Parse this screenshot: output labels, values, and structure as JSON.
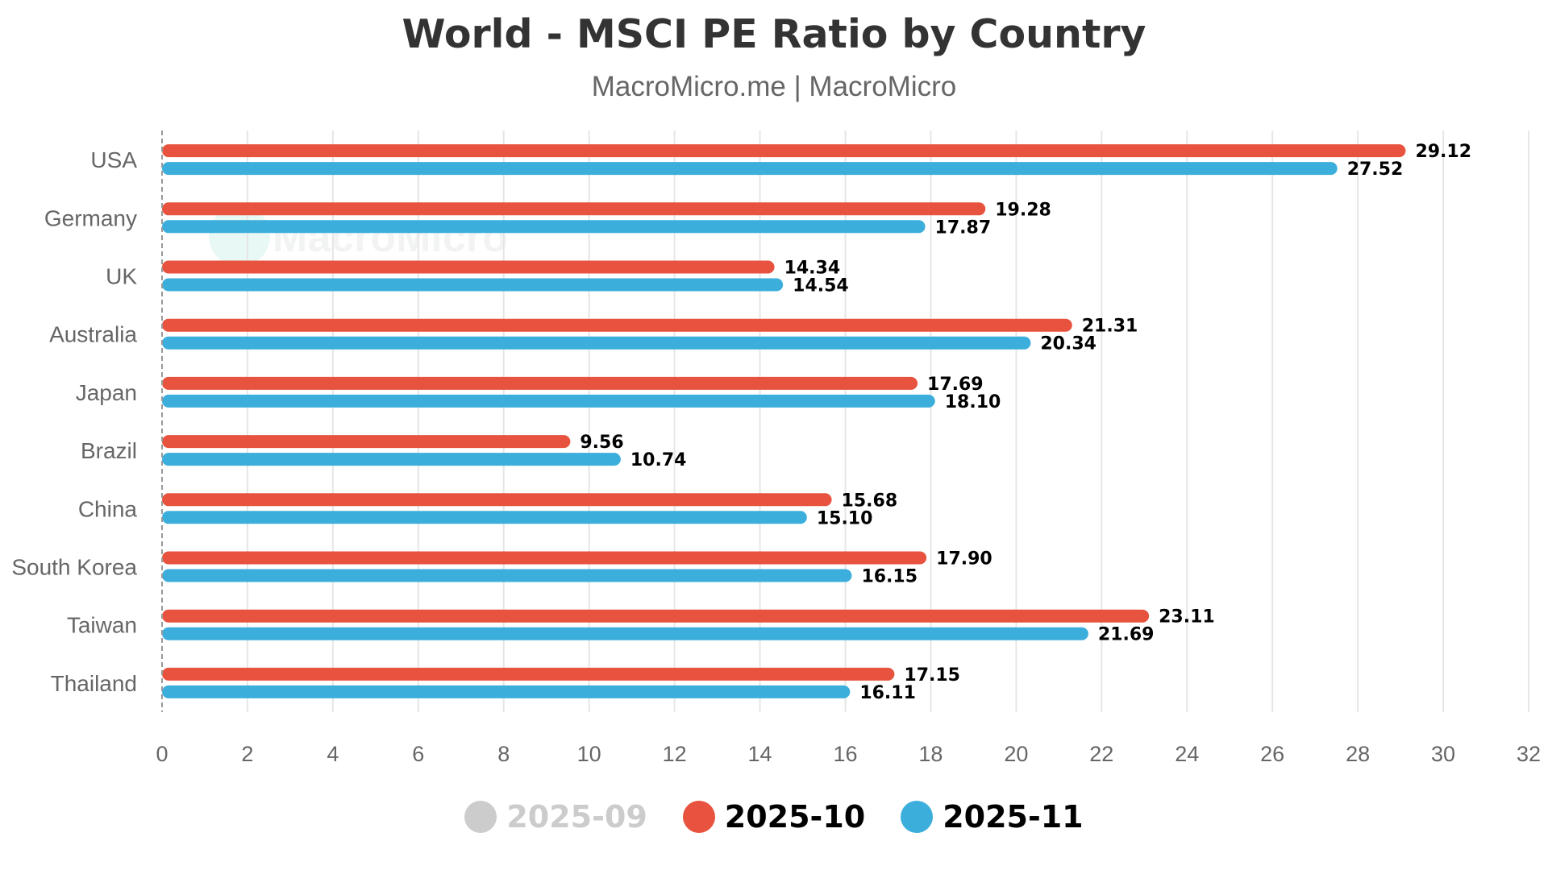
{
  "page": {
    "title": "World - MSCI PE Ratio by Country",
    "subtitle": "MacroMicro.me | MacroMicro",
    "watermark": "MacroMicro"
  },
  "legend": [
    {
      "name": "2025-09",
      "color": "#cccccc",
      "visible": false
    },
    {
      "name": "2025-10",
      "color": "#e8533f",
      "visible": true
    },
    {
      "name": "2025-11",
      "color": "#3caedb",
      "visible": true
    }
  ],
  "chart_data": {
    "type": "bar",
    "orientation": "horizontal",
    "title": "World - MSCI PE Ratio by Country",
    "subtitle": "MacroMicro.me | MacroMicro",
    "categories": [
      "USA",
      "Germany",
      "UK",
      "Australia",
      "Japan",
      "Brazil",
      "China",
      "South Korea",
      "Taiwan",
      "Thailand"
    ],
    "series": [
      {
        "name": "2025-10",
        "color": "#e8533f",
        "values": [
          29.12,
          19.28,
          14.34,
          21.31,
          17.69,
          9.56,
          15.68,
          17.9,
          23.11,
          17.15
        ],
        "labels": [
          "29.12",
          "19.28",
          "14.34",
          "21.31",
          "17.69",
          "9.56",
          "15.68",
          "17.90",
          "23.11",
          "17.15"
        ]
      },
      {
        "name": "2025-11",
        "color": "#3caedb",
        "values": [
          27.52,
          17.87,
          14.54,
          20.34,
          18.1,
          10.74,
          15.1,
          16.15,
          21.69,
          16.11
        ],
        "labels": [
          "27.52",
          "17.87",
          "14.54",
          "20.34",
          "18.10",
          "10.74",
          "15.10",
          "16.15",
          "21.69",
          "16.11"
        ]
      }
    ],
    "xlim": [
      0,
      32
    ],
    "xticks": [
      "0",
      "2",
      "4",
      "6",
      "8",
      "10",
      "12",
      "14",
      "16",
      "18",
      "20",
      "22",
      "24",
      "26",
      "28",
      "30",
      "32"
    ],
    "grid": true,
    "legend_position": "bottom-center"
  }
}
